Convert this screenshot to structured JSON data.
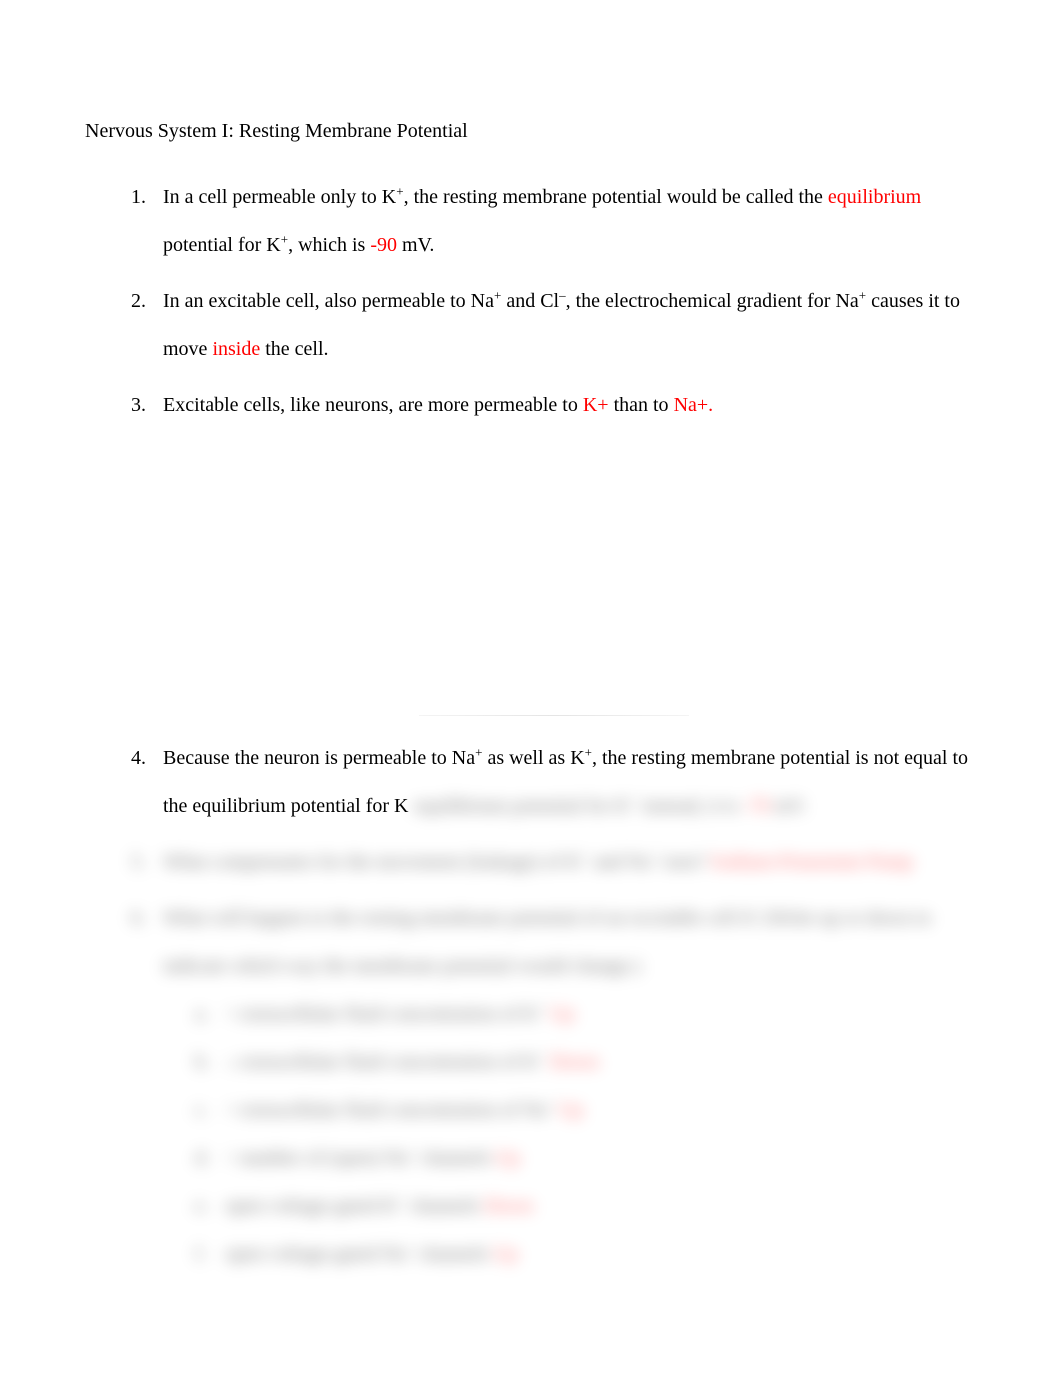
{
  "title": "Nervous System I: Resting Membrane Potential",
  "items": {
    "1": {
      "num": "1.",
      "pre1": "In a cell permeable only to K",
      "sup1": "+",
      "mid1": ", the resting membrane potential would be called the ",
      "red1": "equilibrium",
      "mid2": " potential for K",
      "sup2": "+",
      "mid3": ", which is ",
      "red2": "-90",
      "post": " mV."
    },
    "2": {
      "num": "2.",
      "pre1": "In an excitable cell, also permeable to Na",
      "sup1": "+",
      "mid1": " and Cl",
      "sup2": "–",
      "mid2": ", the electrochemical gradient for Na",
      "sup3": "+",
      "mid3": " causes it to move ",
      "red1": "inside",
      "post": " the cell."
    },
    "3": {
      "num": "3.",
      "pre1": "Excitable cells, like neurons, are more permeable to ",
      "red1": "K+",
      "mid1": " than to ",
      "red2": "Na+.",
      "post": ""
    },
    "4": {
      "num": "4.",
      "pre1": "Because the neuron is permeable to Na",
      "sup1": "+",
      "mid1": " as well as K",
      "sup2": "+",
      "mid2": ", the resting membrane potential is not equal to the equilibrium potential for K",
      "sup3": "+",
      "mid3": " instead, it is ",
      "red1": "-70",
      "post": " mV."
    },
    "5": {
      "num": "5.",
      "pre1": "What compensates for the movement (leakage) of K",
      "sup1": "+",
      "mid1": " and Na",
      "sup2": "+",
      "mid2": " ions? ",
      "red1": "Sodium-Potassium Pump"
    },
    "6": {
      "num": "6.",
      "pre1": "What will happen to the resting membrane potential of an excitable cell if: (Write up or down to indicate which way the membrane potential would change.)"
    },
    "sub": {
      "a": {
        "letter": "a.",
        "text": "↑ extracellular fluid concentration of K",
        "sup": "+",
        "red": " Up"
      },
      "b": {
        "letter": "b.",
        "text": "↓ extracellular fluid concentration of K",
        "sup": "+",
        "red": " Down"
      },
      "c": {
        "letter": "c.",
        "text": "↑ extracellular fluid concentration of Na",
        "sup": "+",
        "red": " Up"
      },
      "d": {
        "letter": "d.",
        "text": "↑ number of (open) Na",
        "sup": "+",
        "text2": " channels",
        "red": " Up"
      },
      "e": {
        "letter": "e.",
        "text": "open voltage-gated K",
        "sup": "+",
        "text2": " channels",
        "red": " Down"
      },
      "f": {
        "letter": "f.",
        "text": "open voltage-gated Na",
        "sup": "+",
        "text2": " channels",
        "red": " Up"
      }
    }
  },
  "colors": {
    "text": "#000000",
    "red": "#ff0000",
    "background": "#ffffff"
  }
}
